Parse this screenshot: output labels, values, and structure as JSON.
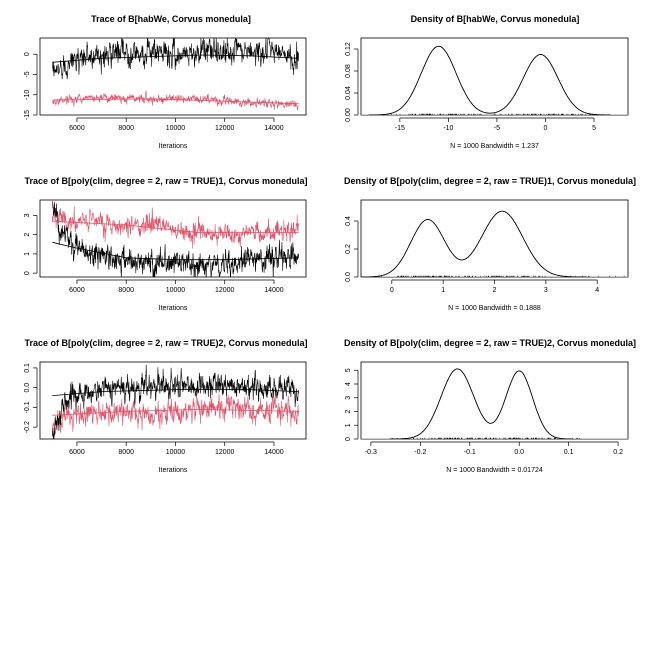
{
  "colors": {
    "chain1": "#000000",
    "chain2": "#DF536B",
    "baseline": "#BEBEBE",
    "background": "#FFFFFF"
  },
  "chart_data": [
    {
      "type": "line",
      "title": "Trace of B[habWe, Corvus monedula]",
      "xlabel": "Iterations",
      "ylabel": "",
      "xlim": [
        4500,
        15300
      ],
      "ylim": [
        -15,
        4
      ],
      "xticks": [
        6000,
        8000,
        10000,
        12000,
        14000
      ],
      "yticks": [
        -15,
        -10,
        -5,
        0
      ],
      "series": [
        {
          "color": "chain1",
          "x_range": [
            5000,
            15000
          ],
          "anchors": [
            [
              5000,
              -5
            ],
            [
              5400,
              -3
            ],
            [
              6000,
              -1
            ],
            [
              7000,
              0
            ],
            [
              8000,
              0.5
            ],
            [
              10000,
              0
            ],
            [
              11500,
              1
            ],
            [
              13000,
              0.5
            ],
            [
              14000,
              1
            ],
            [
              15000,
              -2
            ]
          ],
          "noise": 1.6
        },
        {
          "color": "chain2",
          "x_range": [
            5000,
            15000
          ],
          "anchors": [
            [
              5000,
              -11.5
            ],
            [
              7000,
              -10.5
            ],
            [
              9000,
              -11
            ],
            [
              11000,
              -11
            ],
            [
              13000,
              -12
            ],
            [
              15000,
              -12.5
            ]
          ],
          "noise": 0.55
        }
      ],
      "smooth": [
        {
          "color": "chain1",
          "points": [
            [
              5000,
              -2
            ],
            [
              7000,
              -1
            ],
            [
              9000,
              -0.6
            ],
            [
              11000,
              -0.2
            ],
            [
              13000,
              -0.4
            ],
            [
              15000,
              -1
            ]
          ]
        },
        {
          "color": "chain2",
          "points": [
            [
              5000,
              -11.3
            ],
            [
              9000,
              -11
            ],
            [
              12000,
              -11.6
            ],
            [
              15000,
              -12.2
            ]
          ]
        }
      ]
    },
    {
      "type": "line",
      "title": "Density of B[habWe, Corvus monedula]",
      "xlabel": "N = 1000   Bandwidth = 1.237",
      "ylabel": "",
      "xlim": [
        -19,
        8.5
      ],
      "ylim": [
        0,
        0.14
      ],
      "xticks": [
        -15,
        -10,
        -5,
        0,
        5
      ],
      "yticks": [
        0.0,
        0.04,
        0.08,
        0.12
      ],
      "tick_labels": [
        "0.00",
        "0.04",
        "0.08",
        "0.12"
      ],
      "density": {
        "range": [
          -8,
          5
        ],
        "components": [
          {
            "mean": -11,
            "sd": 1.8,
            "height": 0.125
          },
          {
            "mean": -0.5,
            "sd": 1.8,
            "height": 0.11
          }
        ]
      },
      "rug": {
        "range": [
          -16,
          5
        ]
      }
    },
    {
      "type": "line",
      "title": "Trace of B[poly(clim, degree = 2, raw = TRUE)1, Corvus monedula]",
      "xlabel": "Iterations",
      "ylabel": "",
      "xlim": [
        4500,
        15300
      ],
      "ylim": [
        -0.2,
        3.8
      ],
      "xticks": [
        6000,
        8000,
        10000,
        12000,
        14000
      ],
      "yticks": [
        0,
        1,
        2,
        3
      ],
      "series": [
        {
          "color": "chain2",
          "x_range": [
            5000,
            15000
          ],
          "anchors": [
            [
              5000,
              3.1
            ],
            [
              5600,
              2.7
            ],
            [
              7000,
              2.7
            ],
            [
              8000,
              2.4
            ],
            [
              9000,
              2.6
            ],
            [
              10000,
              2.2
            ],
            [
              12000,
              2.0
            ],
            [
              13500,
              2.1
            ],
            [
              15000,
              2.2
            ]
          ],
          "noise": 0.28
        },
        {
          "color": "chain1",
          "x_range": [
            5000,
            15000
          ],
          "anchors": [
            [
              5000,
              3.5
            ],
            [
              5300,
              2.4
            ],
            [
              5800,
              1.5
            ],
            [
              6500,
              1.0
            ],
            [
              7500,
              0.9
            ],
            [
              8500,
              0.5
            ],
            [
              10000,
              0.6
            ],
            [
              11500,
              0.3
            ],
            [
              13000,
              0.8
            ],
            [
              15000,
              0.9
            ]
          ],
          "noise": 0.35
        }
      ],
      "smooth": [
        {
          "color": "chain1",
          "points": [
            [
              5000,
              1.6
            ],
            [
              6000,
              1.3
            ],
            [
              8000,
              0.8
            ],
            [
              10000,
              0.7
            ],
            [
              12000,
              0.7
            ],
            [
              15000,
              0.8
            ]
          ]
        },
        {
          "color": "chain2",
          "points": [
            [
              5000,
              2.7
            ],
            [
              8000,
              2.5
            ],
            [
              11000,
              2.1
            ],
            [
              15000,
              2.1
            ]
          ]
        }
      ]
    },
    {
      "type": "line",
      "title": "Density of B[poly(clim, degree = 2, raw = TRUE)1, Corvus monedula]",
      "xlabel": "N = 1000   Bandwidth = 0.1888",
      "ylabel": "",
      "xlim": [
        -0.6,
        4.6
      ],
      "ylim": [
        0,
        0.55
      ],
      "xticks": [
        0,
        1,
        2,
        3,
        4
      ],
      "yticks": [
        0.0,
        0.2,
        0.4
      ],
      "tick_labels": [
        "0.0",
        "0.2",
        "0.4"
      ],
      "density": {
        "range": [
          -0.3,
          3.8
        ],
        "components": [
          {
            "mean": 0.7,
            "sd": 0.33,
            "height": 0.41
          },
          {
            "mean": 2.15,
            "sd": 0.4,
            "height": 0.47
          }
        ]
      },
      "rug": {
        "range": [
          -0.3,
          4.6
        ]
      }
    },
    {
      "type": "line",
      "title": "Trace of B[poly(clim, degree = 2, raw = TRUE)2, Corvus monedula]",
      "xlabel": "Iterations",
      "ylabel": "",
      "xlim": [
        4500,
        15300
      ],
      "ylim": [
        -0.26,
        0.13
      ],
      "xticks": [
        6000,
        8000,
        10000,
        12000,
        14000
      ],
      "yticks": [
        -0.2,
        -0.1,
        0.0,
        0.1
      ],
      "tick_labels": [
        "-0.2",
        "-0.1",
        "0.0",
        "0.1"
      ],
      "series": [
        {
          "color": "chain2",
          "x_range": [
            5000,
            15000
          ],
          "anchors": [
            [
              5000,
              -0.2
            ],
            [
              6000,
              -0.13
            ],
            [
              8000,
              -0.12
            ],
            [
              9000,
              -0.15
            ],
            [
              10000,
              -0.11
            ],
            [
              12000,
              -0.1
            ],
            [
              14000,
              -0.12
            ],
            [
              15000,
              -0.13
            ]
          ],
          "noise": 0.032
        },
        {
          "color": "chain1",
          "x_range": [
            5000,
            15000
          ],
          "anchors": [
            [
              5000,
              -0.22
            ],
            [
              5400,
              -0.08
            ],
            [
              6000,
              -0.03
            ],
            [
              7000,
              0.0
            ],
            [
              9000,
              0.0
            ],
            [
              11000,
              0.01
            ],
            [
              13000,
              0.0
            ],
            [
              15000,
              -0.01
            ]
          ],
          "noise": 0.034
        }
      ],
      "smooth": [
        {
          "color": "chain1",
          "points": [
            [
              5000,
              -0.04
            ],
            [
              7000,
              -0.02
            ],
            [
              10000,
              -0.01
            ],
            [
              13000,
              -0.01
            ],
            [
              15000,
              -0.02
            ]
          ]
        },
        {
          "color": "chain2",
          "points": [
            [
              5000,
              -0.14
            ],
            [
              8000,
              -0.12
            ],
            [
              11000,
              -0.11
            ],
            [
              15000,
              -0.12
            ]
          ]
        }
      ]
    },
    {
      "type": "line",
      "title": "Density of B[poly(clim, degree = 2, raw = TRUE)2, Corvus monedula]",
      "xlabel": "N = 1000   Bandwidth = 0.01724",
      "ylabel": "",
      "xlim": [
        -0.32,
        0.22
      ],
      "ylim": [
        0,
        5.6
      ],
      "xticks": [
        -0.3,
        -0.2,
        -0.1,
        0.0,
        0.1,
        0.2
      ],
      "tick_labels": [
        "-0.3",
        "-0.2",
        "-0.1",
        "0.0",
        "0.1",
        "0.2"
      ],
      "yticks": [
        0,
        1,
        2,
        3,
        4,
        5
      ],
      "density": {
        "range": [
          -0.26,
          0.1
        ],
        "components": [
          {
            "mean": -0.125,
            "sd": 0.033,
            "height": 5.1
          },
          {
            "mean": 0.0,
            "sd": 0.027,
            "height": 4.95
          }
        ]
      },
      "rug": {
        "range": [
          -0.26,
          0.15
        ]
      }
    }
  ]
}
